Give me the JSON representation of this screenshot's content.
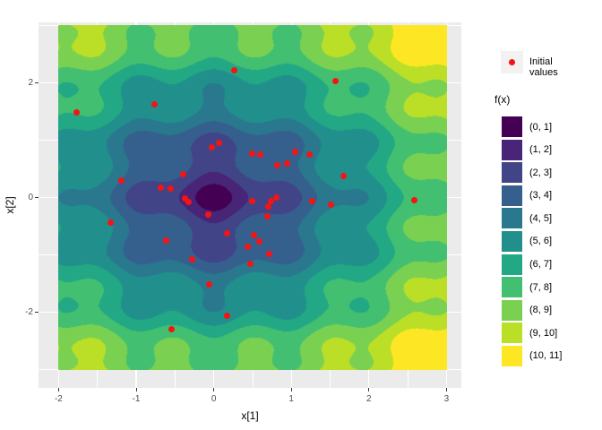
{
  "chart_data": {
    "type": "filled_contour_scatter",
    "xlabel": "x[1]",
    "ylabel": "x[2]",
    "x_domain": [
      -2,
      3
    ],
    "y_domain": [
      -3,
      3
    ],
    "x_ticks": [
      -2,
      -1,
      0,
      1,
      2,
      3
    ],
    "x_minor_ticks": [
      -1.5,
      -0.5,
      0.5,
      1.5,
      2.5
    ],
    "y_ticks": [
      -2,
      0,
      2
    ],
    "y_minor_ticks": [
      -3,
      -1,
      1,
      3
    ],
    "grid": true,
    "legend_position": "right",
    "fill_scale": {
      "title": "f(x)",
      "bins": [
        {
          "label": "(0, 1]",
          "color": "#440154"
        },
        {
          "label": "(1, 2]",
          "color": "#482576"
        },
        {
          "label": "(2, 3]",
          "color": "#414487"
        },
        {
          "label": "(3, 4]",
          "color": "#35608D"
        },
        {
          "label": "(4, 5]",
          "color": "#2A788E"
        },
        {
          "label": "(5, 6]",
          "color": "#21908C"
        },
        {
          "label": "(6, 7]",
          "color": "#22A884"
        },
        {
          "label": "(7, 8]",
          "color": "#43BF71"
        },
        {
          "label": "(8, 9]",
          "color": "#7AD151"
        },
        {
          "label": "(9, 10]",
          "color": "#BBDF27"
        },
        {
          "label": "(10, 11]",
          "color": "#FDE725"
        }
      ]
    },
    "surface_estimate": "f(x1,x2) ~= 2.5*sqrt(x1^2+x2^2) + 0.9*(sin(pi*x1)^2 + sin(pi*x2)^2); global minimum 0 at origin, local dips at integer lattice points, values binned into unit intervals up to 11",
    "scatter": {
      "legend_label": "Initial values",
      "color": "#F51313",
      "points": [
        [
          0.26,
          2.22
        ],
        [
          1.57,
          2.03
        ],
        [
          -1.77,
          1.49
        ],
        [
          -0.76,
          1.62
        ],
        [
          -0.02,
          0.88
        ],
        [
          0.07,
          0.95
        ],
        [
          0.49,
          0.76
        ],
        [
          0.6,
          0.75
        ],
        [
          0.82,
          0.57
        ],
        [
          0.94,
          0.59
        ],
        [
          1.05,
          0.8
        ],
        [
          1.23,
          0.75
        ],
        [
          1.67,
          0.38
        ],
        [
          -0.39,
          0.41
        ],
        [
          -1.19,
          0.29
        ],
        [
          -0.68,
          0.17
        ],
        [
          -0.56,
          0.16
        ],
        [
          -0.37,
          -0.02
        ],
        [
          -0.32,
          -0.08
        ],
        [
          -0.07,
          -0.29
        ],
        [
          0.49,
          -0.06
        ],
        [
          0.81,
          0.0
        ],
        [
          0.74,
          -0.07
        ],
        [
          0.7,
          -0.16
        ],
        [
          0.69,
          -0.33
        ],
        [
          1.27,
          -0.06
        ],
        [
          1.51,
          -0.12
        ],
        [
          2.59,
          -0.05
        ],
        [
          -1.33,
          -0.44
        ],
        [
          -0.61,
          -0.75
        ],
        [
          0.17,
          -0.62
        ],
        [
          0.52,
          -0.65
        ],
        [
          0.59,
          -0.76
        ],
        [
          0.44,
          -0.86
        ],
        [
          0.72,
          -0.98
        ],
        [
          -0.28,
          -1.08
        ],
        [
          0.47,
          -1.16
        ],
        [
          -0.06,
          -1.51
        ],
        [
          0.17,
          -2.06
        ],
        [
          -0.54,
          -2.3
        ]
      ]
    }
  },
  "theme": {
    "panel_bg": "#EBEBEB",
    "grid_color": "#FFFFFF",
    "tick_text_color": "#4D4D4D",
    "legend_key_bg": "#F2F2F2"
  }
}
